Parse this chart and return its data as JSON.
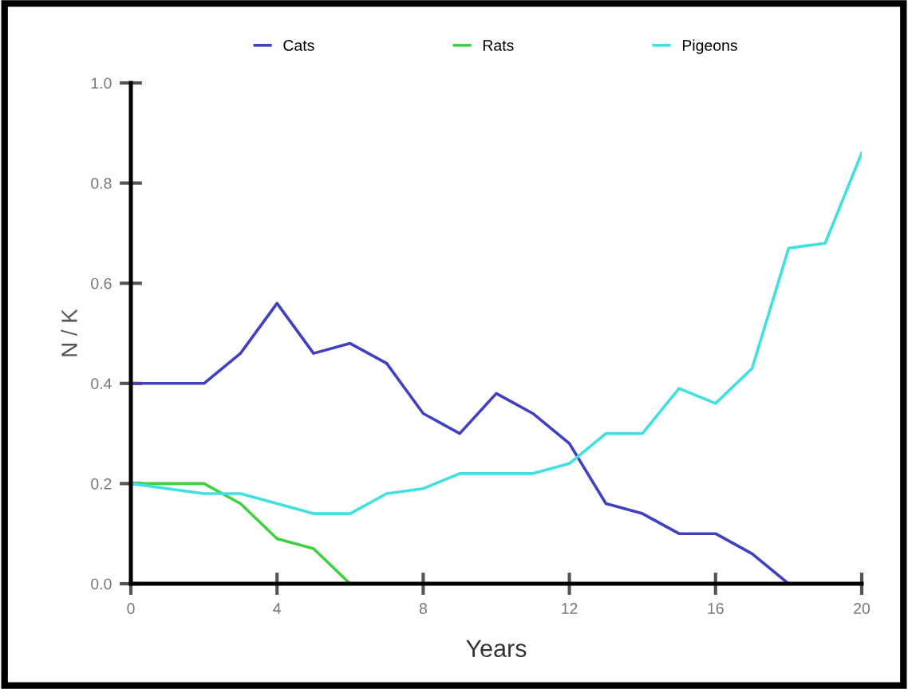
{
  "chart_data": {
    "type": "line",
    "xlabel": "Years",
    "ylabel": "N / K",
    "x": [
      0,
      1,
      2,
      3,
      4,
      5,
      6,
      7,
      8,
      9,
      10,
      11,
      12,
      13,
      14,
      15,
      16,
      17,
      18,
      19,
      20
    ],
    "series": [
      {
        "name": "Cats",
        "color": "#4040c0",
        "values": [
          0.4,
          0.4,
          0.4,
          0.46,
          0.56,
          0.46,
          0.48,
          0.44,
          0.34,
          0.3,
          0.38,
          0.34,
          0.28,
          0.16,
          0.14,
          0.1,
          0.1,
          0.06,
          0.0,
          null,
          null
        ]
      },
      {
        "name": "Rats",
        "color": "#40d040",
        "values": [
          0.2,
          0.2,
          0.2,
          0.16,
          0.09,
          0.07,
          0.0,
          null,
          null,
          null,
          null,
          null,
          null,
          null,
          null,
          null,
          null,
          null,
          null,
          null,
          null
        ]
      },
      {
        "name": "Pigeons",
        "color": "#40e0e0",
        "values": [
          0.2,
          0.19,
          0.18,
          0.18,
          0.16,
          0.14,
          0.14,
          0.18,
          0.19,
          0.22,
          0.22,
          0.22,
          0.24,
          0.3,
          0.3,
          0.39,
          0.36,
          0.43,
          0.67,
          0.68,
          0.86
        ]
      }
    ],
    "xlim": [
      0,
      20
    ],
    "xticks": [
      0,
      4,
      8,
      12,
      16,
      20
    ],
    "ylim": [
      0,
      1.0
    ],
    "yticks": [
      {
        "value": 0,
        "label": "0.0"
      },
      {
        "value": 0.2,
        "label": "0.2"
      },
      {
        "value": 0.4,
        "label": "0.4"
      },
      {
        "value": 0.6,
        "label": "0.6"
      },
      {
        "value": 0.8,
        "label": "0.8"
      },
      {
        "value": 1.0,
        "label": "1.0"
      }
    ],
    "legend": "top",
    "grid": false
  }
}
